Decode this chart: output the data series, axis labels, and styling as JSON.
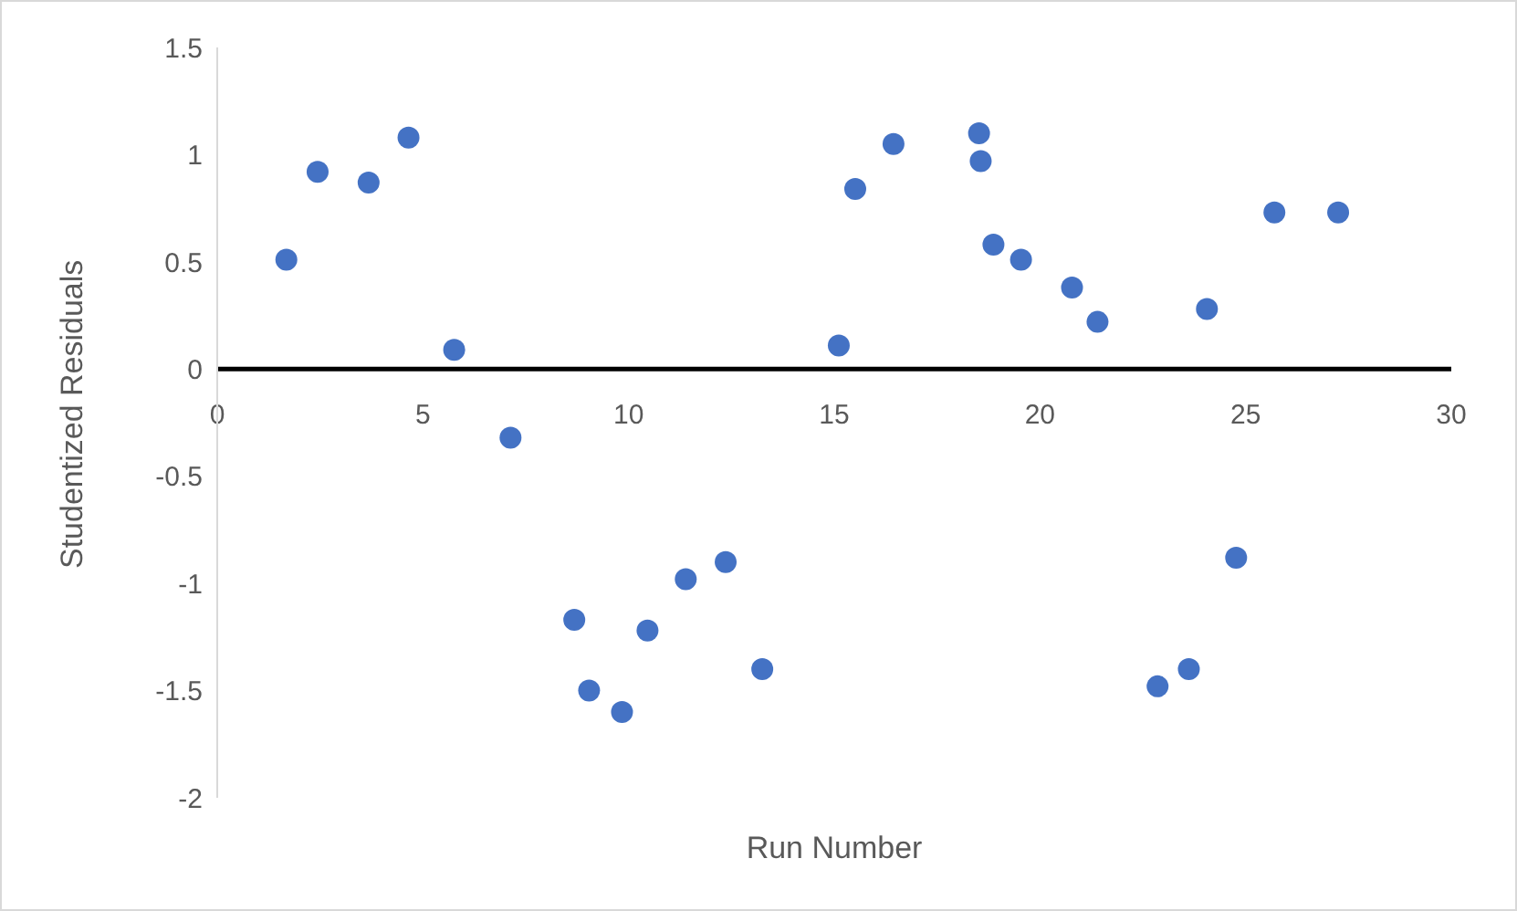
{
  "chart_data": {
    "type": "scatter",
    "xlabel": "Run Number",
    "ylabel": "Studentized Residuals",
    "x": [
      1.68,
      2.44,
      3.68,
      4.65,
      5.76,
      7.13,
      8.68,
      9.04,
      9.84,
      10.46,
      11.39,
      12.36,
      13.25,
      15.11,
      15.51,
      16.44,
      18.52,
      18.56,
      18.87,
      19.54,
      20.78,
      21.4,
      22.86,
      23.62,
      24.06,
      24.77,
      25.7,
      27.25
    ],
    "series": [
      {
        "color": "#4472c4",
        "values": [
          0.51,
          0.92,
          0.87,
          1.08,
          0.09,
          -0.32,
          -1.17,
          -1.5,
          -1.6,
          -1.22,
          -0.98,
          -0.9,
          -1.4,
          0.11,
          0.84,
          1.05,
          1.1,
          0.97,
          0.58,
          0.51,
          0.38,
          0.22,
          -1.48,
          -1.4,
          0.28,
          -0.88,
          0.73,
          0.73
        ]
      }
    ],
    "xlim": [
      0,
      30
    ],
    "xticks": [
      0,
      5,
      10,
      15,
      20,
      25,
      30
    ],
    "ylim": [
      -2,
      1.5
    ],
    "yticks": [
      -2,
      -1.5,
      -1,
      -0.5,
      0,
      0.5,
      1,
      1.5
    ],
    "marker": "circle",
    "legend": false,
    "grid": false
  }
}
